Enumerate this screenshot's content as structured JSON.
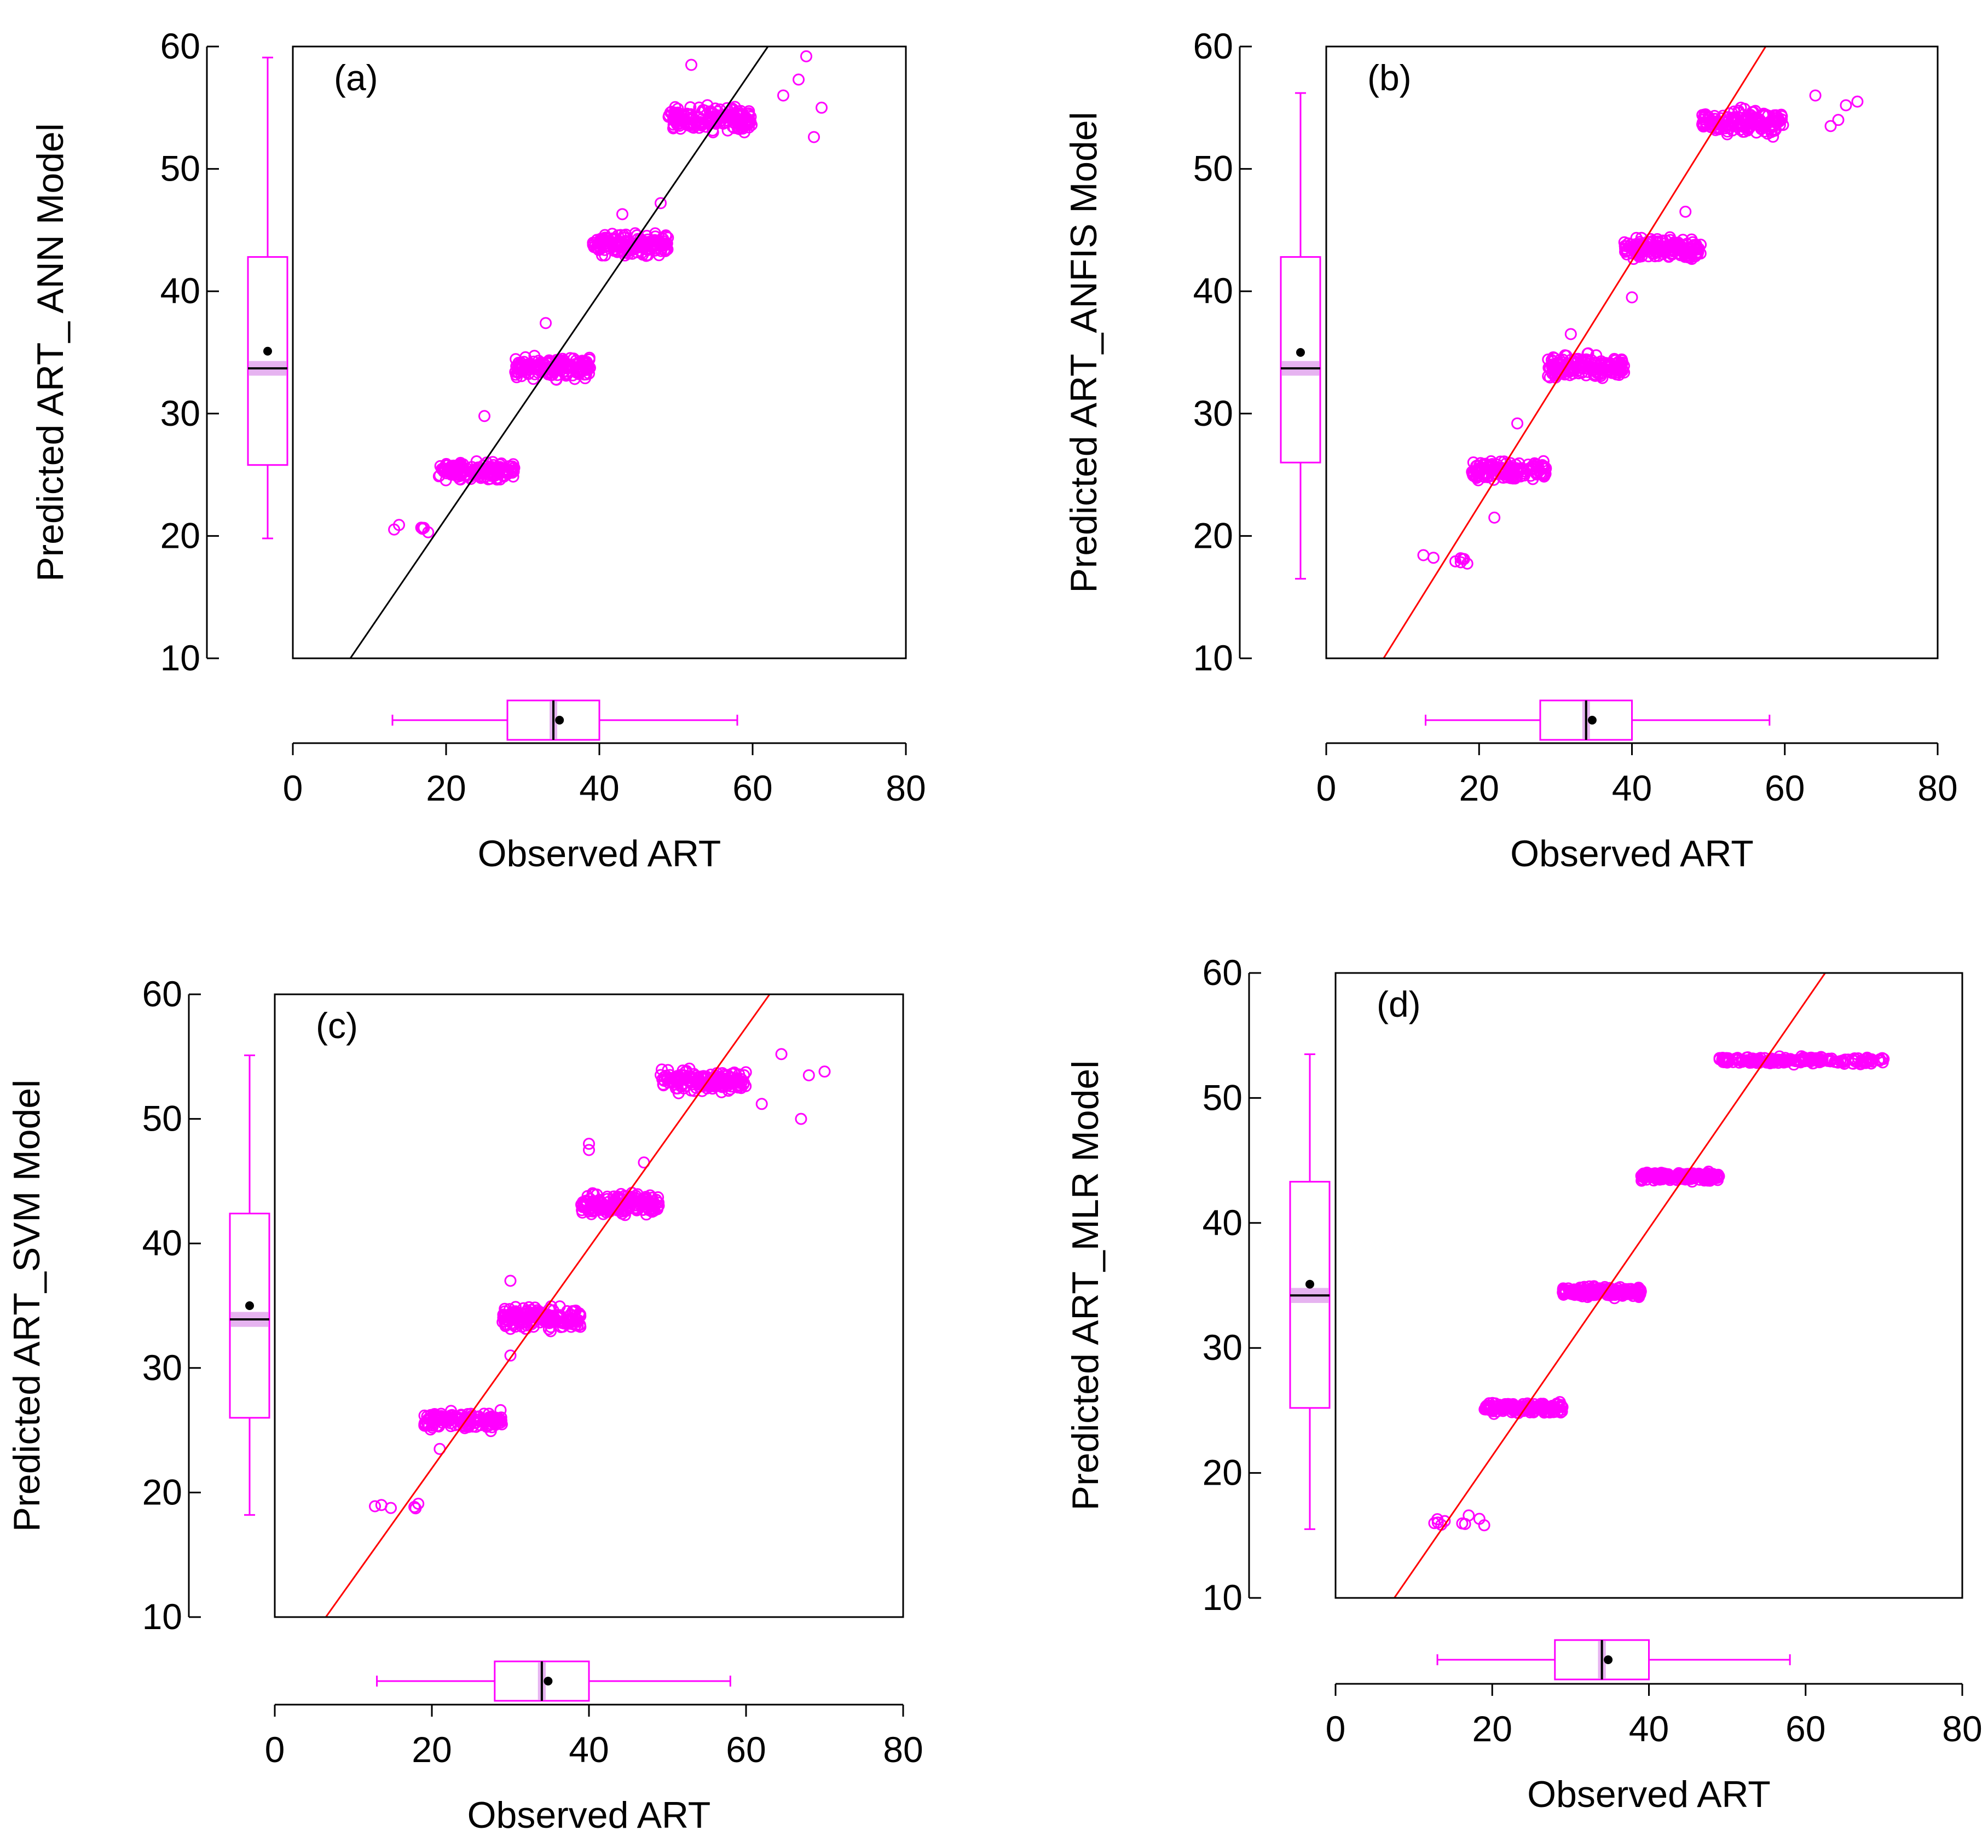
{
  "figure": {
    "colors": {
      "points": "#ff00ff",
      "box": "#ff00ff",
      "axis": "#000000",
      "mean_marker": "#000000",
      "median_band": "#e6b3f0"
    }
  },
  "chart_data": [
    {
      "type": "scatter",
      "panel_label": "(a)",
      "xlabel": "Observed ART",
      "ylabel": "Predicted ART_ ANN Model",
      "xlim": [
        0,
        80
      ],
      "ylim": [
        10,
        60
      ],
      "x_ticks": [
        "0",
        "20",
        "40",
        "60",
        "80"
      ],
      "y_ticks": [
        "10",
        "20",
        "30",
        "40",
        "50",
        "60"
      ],
      "fit_line": {
        "color": "#000000",
        "x1": 7.5,
        "y1": 10,
        "x2": 62,
        "y2": 60
      },
      "clusters": [
        {
          "x_range": [
            12.5,
            19
          ],
          "y_center": 20.5,
          "y_spread": 0.6,
          "n": 6
        },
        {
          "x_range": [
            19,
            29
          ],
          "y_center": 25.3,
          "y_spread": 1.0,
          "n": 150
        },
        {
          "x_range": [
            29,
            39
          ],
          "y_center": 33.8,
          "y_spread": 1.2,
          "n": 170
        },
        {
          "x_range": [
            39,
            49
          ],
          "y_center": 43.8,
          "y_spread": 1.2,
          "n": 170
        },
        {
          "x_range": [
            49,
            60
          ],
          "y_center": 54.0,
          "y_spread": 1.4,
          "n": 160
        }
      ],
      "outliers": [
        [
          25,
          29.8
        ],
        [
          33,
          37.4
        ],
        [
          43,
          46.3
        ],
        [
          48,
          47.2
        ],
        [
          52,
          58.5
        ],
        [
          66,
          57.3
        ],
        [
          67,
          59.2
        ],
        [
          69,
          55
        ],
        [
          68,
          52.6
        ],
        [
          64,
          56
        ]
      ],
      "y_boxplot": {
        "min": 19.8,
        "q1": 25.8,
        "median": 33.7,
        "q3": 42.8,
        "max": 59.1,
        "mean": 35.1
      },
      "x_boxplot": {
        "min": 13,
        "q1": 28,
        "median": 34,
        "q3": 40,
        "max": 58,
        "mean": 34.8
      }
    },
    {
      "type": "scatter",
      "panel_label": "(b)",
      "xlabel": "Observed ART",
      "ylabel": "Predicted ART_ANFIS Model",
      "xlim": [
        0,
        80
      ],
      "ylim": [
        10,
        60
      ],
      "x_ticks": [
        "0",
        "20",
        "40",
        "60",
        "80"
      ],
      "y_ticks": [
        "10",
        "20",
        "30",
        "40",
        "50",
        "60"
      ],
      "fit_line": {
        "color": "#ff0000",
        "x1": 7.5,
        "y1": 10,
        "x2": 57.5,
        "y2": 60
      },
      "clusters": [
        {
          "x_range": [
            12.5,
            19
          ],
          "y_center": 18.0,
          "y_spread": 0.8,
          "n": 8
        },
        {
          "x_range": [
            19,
            29
          ],
          "y_center": 25.3,
          "y_spread": 1.2,
          "n": 150
        },
        {
          "x_range": [
            29,
            39
          ],
          "y_center": 33.8,
          "y_spread": 1.3,
          "n": 170
        },
        {
          "x_range": [
            39,
            49
          ],
          "y_center": 43.5,
          "y_spread": 1.2,
          "n": 170
        },
        {
          "x_range": [
            49,
            60
          ],
          "y_center": 53.8,
          "y_spread": 1.5,
          "n": 160
        }
      ],
      "outliers": [
        [
          22,
          21.5
        ],
        [
          25,
          29.2
        ],
        [
          32,
          36.5
        ],
        [
          40,
          39.5
        ],
        [
          47,
          46.5
        ],
        [
          64,
          56
        ],
        [
          66,
          53.5
        ],
        [
          68,
          55.2
        ],
        [
          69.5,
          55.5
        ],
        [
          67,
          54
        ]
      ],
      "y_boxplot": {
        "min": 16.5,
        "q1": 26.0,
        "median": 33.7,
        "q3": 42.8,
        "max": 56.2,
        "mean": 35.0
      },
      "x_boxplot": {
        "min": 13,
        "q1": 28,
        "median": 34,
        "q3": 40,
        "max": 58,
        "mean": 34.8
      }
    },
    {
      "type": "scatter",
      "panel_label": "(c)",
      "xlabel": "Observed ART",
      "ylabel": "Predicted ART_SVM Model",
      "xlim": [
        0,
        80
      ],
      "ylim": [
        10,
        60
      ],
      "x_ticks": [
        "0",
        "20",
        "40",
        "60",
        "80"
      ],
      "y_ticks": [
        "10",
        "20",
        "30",
        "40",
        "50",
        "60"
      ],
      "fit_line": {
        "color": "#ff0000",
        "x1": 6.5,
        "y1": 10,
        "x2": 63,
        "y2": 60
      },
      "clusters": [
        {
          "x_range": [
            12.5,
            19
          ],
          "y_center": 18.8,
          "y_spread": 0.4,
          "n": 6
        },
        {
          "x_range": [
            19,
            29
          ],
          "y_center": 25.8,
          "y_spread": 1.0,
          "n": 150
        },
        {
          "x_range": [
            29,
            39
          ],
          "y_center": 34.0,
          "y_spread": 1.2,
          "n": 170
        },
        {
          "x_range": [
            39,
            49
          ],
          "y_center": 43.2,
          "y_spread": 1.2,
          "n": 170
        },
        {
          "x_range": [
            49,
            60
          ],
          "y_center": 53.0,
          "y_spread": 1.2,
          "n": 160
        }
      ],
      "outliers": [
        [
          21,
          23.5
        ],
        [
          30,
          37
        ],
        [
          30,
          31
        ],
        [
          40,
          47.5
        ],
        [
          40,
          48
        ],
        [
          47,
          46.5
        ],
        [
          64.5,
          55.2
        ],
        [
          67,
          50
        ],
        [
          68,
          53.5
        ],
        [
          70,
          53.8
        ],
        [
          62,
          51.2
        ]
      ],
      "y_boxplot": {
        "min": 18.2,
        "q1": 26.0,
        "median": 33.9,
        "q3": 42.4,
        "max": 55.1,
        "mean": 35.0
      },
      "x_boxplot": {
        "min": 13,
        "q1": 28,
        "median": 34,
        "q3": 40,
        "max": 58,
        "mean": 34.8
      }
    },
    {
      "type": "scatter",
      "panel_label": "(d)",
      "xlabel": "Observed ART",
      "ylabel": "Predicted ART_MLR Model",
      "xlim": [
        0,
        80
      ],
      "ylim": [
        10,
        60
      ],
      "x_ticks": [
        "0",
        "20",
        "40",
        "60",
        "80"
      ],
      "y_ticks": [
        "10",
        "20",
        "30",
        "40",
        "50",
        "60"
      ],
      "fit_line": {
        "color": "#ff0000",
        "x1": 7.5,
        "y1": 10,
        "x2": 62.5,
        "y2": 60
      },
      "clusters": [
        {
          "x_range": [
            12.5,
            19
          ],
          "y_center": 16.0,
          "y_spread": 0.4,
          "n": 8
        },
        {
          "x_range": [
            19,
            29
          ],
          "y_center": 25.2,
          "y_spread": 0.6,
          "n": 150
        },
        {
          "x_range": [
            29,
            39
          ],
          "y_center": 34.5,
          "y_spread": 0.6,
          "n": 170
        },
        {
          "x_range": [
            39,
            49
          ],
          "y_center": 43.7,
          "y_spread": 0.5,
          "n": 170
        },
        {
          "x_range": [
            49,
            70
          ],
          "y_center": 53.0,
          "y_spread": 0.4,
          "n": 180
        }
      ],
      "outliers": [
        [
          13,
          16.3
        ],
        [
          17,
          16.6
        ],
        [
          69.5,
          53.1
        ],
        [
          67,
          52.7
        ]
      ],
      "y_boxplot": {
        "min": 15.5,
        "q1": 25.2,
        "median": 34.2,
        "q3": 43.3,
        "max": 53.5,
        "mean": 35.1
      },
      "x_boxplot": {
        "min": 13,
        "q1": 28,
        "median": 34,
        "q3": 40,
        "max": 58,
        "mean": 34.8
      }
    }
  ]
}
